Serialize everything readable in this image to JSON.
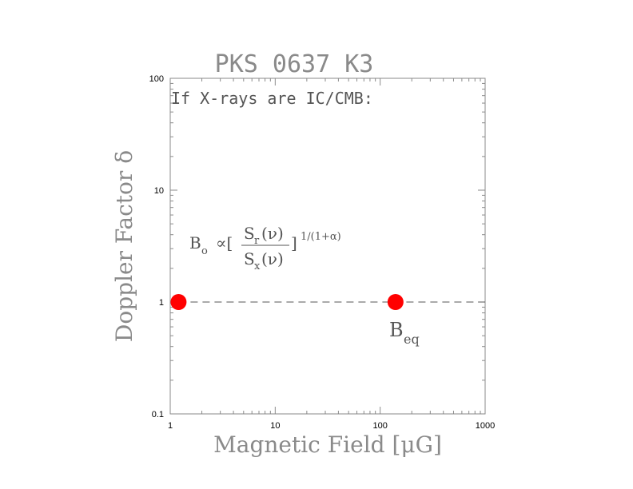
{
  "chart_data": {
    "type": "scatter",
    "title": "PKS 0637 K3",
    "xlabel": "Magnetic Field [μG]",
    "ylabel": "Doppler Factor δ",
    "xscale": "log",
    "yscale": "log",
    "xlim": [
      1,
      1000
    ],
    "ylim": [
      0.1,
      100
    ],
    "x_ticks": [
      {
        "value": 1,
        "label": "1"
      },
      {
        "value": 10,
        "label": "10"
      },
      {
        "value": 100,
        "label": "100"
      },
      {
        "value": 1000,
        "label": "1000"
      }
    ],
    "y_ticks": [
      {
        "value": 0.1,
        "label": "0.1"
      },
      {
        "value": 1,
        "label": "1"
      },
      {
        "value": 10,
        "label": "10"
      },
      {
        "value": 100,
        "label": "100"
      }
    ],
    "grid": false,
    "points": [
      {
        "x": 1.2,
        "y": 1
      },
      {
        "x": 140,
        "y": 1
      }
    ],
    "dashed_line": {
      "x": [
        1.2,
        1000
      ],
      "y": [
        1,
        1
      ]
    },
    "point_color": "#ff0000",
    "annotations": {
      "condition": "If X-rays are IC/CMB:",
      "formula_lhs": "B",
      "formula_lhs_sub": "o",
      "formula_prop": "∝[",
      "formula_num": "S",
      "formula_num_sub": "r",
      "formula_num_arg": "(ν)",
      "formula_den": "S",
      "formula_den_sub": "x",
      "formula_den_arg": "(ν)",
      "formula_close": "]",
      "formula_exp": "1/(1+α)",
      "beq": "B",
      "beq_sub": "eq"
    }
  }
}
